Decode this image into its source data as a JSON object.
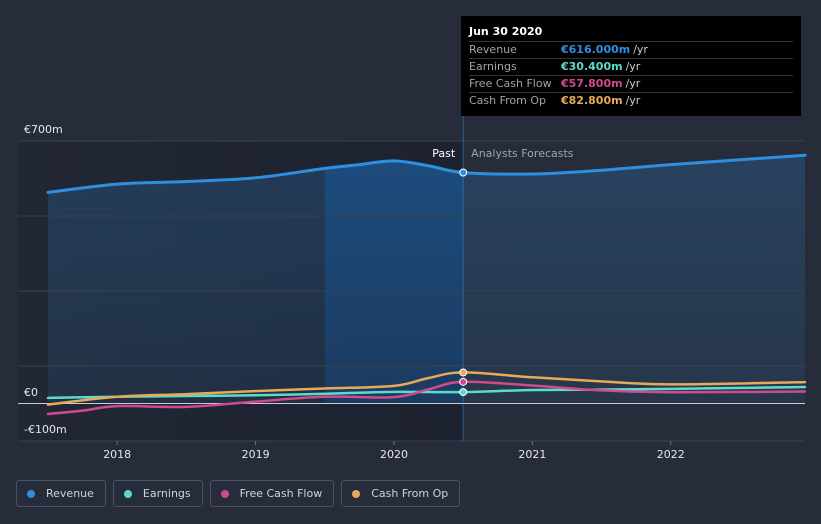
{
  "chart_data": {
    "type": "line",
    "currency_unit": "m",
    "y_ticks": [
      {
        "value": 700,
        "label": "€700m"
      },
      {
        "value": 0,
        "label": "€0"
      },
      {
        "value": -100,
        "label": "-€100m"
      }
    ],
    "ylim": [
      -100,
      700
    ],
    "xlim": [
      2017.5,
      2022.97
    ],
    "x_ticks": [
      {
        "value": 2018,
        "label": "2018"
      },
      {
        "value": 2019,
        "label": "2019"
      },
      {
        "value": 2020,
        "label": "2020"
      },
      {
        "value": 2021,
        "label": "2021"
      },
      {
        "value": 2022,
        "label": "2022"
      }
    ],
    "past_label": "Past",
    "forecast_label": "Analysts Forecasts",
    "past_end": 2020.5,
    "highlight_start": 2019.5,
    "series": [
      {
        "name": "Revenue",
        "color": "#2e8fe0",
        "points": [
          [
            2017.5,
            563
          ],
          [
            2018.0,
            585
          ],
          [
            2018.5,
            592
          ],
          [
            2019.0,
            602
          ],
          [
            2019.5,
            627
          ],
          [
            2019.75,
            637
          ],
          [
            2020.0,
            647
          ],
          [
            2020.25,
            634
          ],
          [
            2020.5,
            616
          ],
          [
            2021.0,
            612
          ],
          [
            2021.5,
            622
          ],
          [
            2022.0,
            637
          ],
          [
            2022.97,
            662
          ]
        ]
      },
      {
        "name": "Earnings",
        "color": "#5ddbc9",
        "points": [
          [
            2017.5,
            15
          ],
          [
            2018.0,
            18
          ],
          [
            2018.5,
            20
          ],
          [
            2019.0,
            22
          ],
          [
            2019.5,
            26
          ],
          [
            2020.0,
            31
          ],
          [
            2020.5,
            30.4
          ],
          [
            2021.0,
            36
          ],
          [
            2021.5,
            37
          ],
          [
            2022.0,
            39
          ],
          [
            2022.97,
            44
          ]
        ]
      },
      {
        "name": "Free Cash Flow",
        "color": "#cf4a8e",
        "points": [
          [
            2017.5,
            -28
          ],
          [
            2017.75,
            -19
          ],
          [
            2018.0,
            -7
          ],
          [
            2018.5,
            -9
          ],
          [
            2019.0,
            5
          ],
          [
            2019.5,
            18
          ],
          [
            2020.0,
            17
          ],
          [
            2020.25,
            38
          ],
          [
            2020.5,
            57.8
          ],
          [
            2021.0,
            48
          ],
          [
            2021.5,
            35
          ],
          [
            2022.0,
            30
          ],
          [
            2022.97,
            32
          ]
        ]
      },
      {
        "name": "Cash From Op",
        "color": "#e8a95b",
        "points": [
          [
            2017.5,
            -3
          ],
          [
            2018.0,
            18
          ],
          [
            2018.5,
            25
          ],
          [
            2019.0,
            33
          ],
          [
            2019.5,
            40
          ],
          [
            2020.0,
            47
          ],
          [
            2020.25,
            68
          ],
          [
            2020.5,
            82.8
          ],
          [
            2021.0,
            70
          ],
          [
            2021.5,
            59
          ],
          [
            2022.0,
            51
          ],
          [
            2022.97,
            57
          ]
        ]
      }
    ]
  },
  "tooltip": {
    "date": "Jun 30 2020",
    "rows": [
      {
        "label": "Revenue",
        "value": "€616.000m",
        "unit": "/yr",
        "color": "#2e8fe0"
      },
      {
        "label": "Earnings",
        "value": "€30.400m",
        "unit": "/yr",
        "color": "#5ddbc9"
      },
      {
        "label": "Free Cash Flow",
        "value": "€57.800m",
        "unit": "/yr",
        "color": "#cf4a8e"
      },
      {
        "label": "Cash From Op",
        "value": "€82.800m",
        "unit": "/yr",
        "color": "#e8a95b"
      }
    ]
  },
  "legend": [
    {
      "label": "Revenue",
      "color": "#2e8fe0"
    },
    {
      "label": "Earnings",
      "color": "#5ddbc9"
    },
    {
      "label": "Free Cash Flow",
      "color": "#cf4a8e"
    },
    {
      "label": "Cash From Op",
      "color": "#e8a95b"
    }
  ]
}
